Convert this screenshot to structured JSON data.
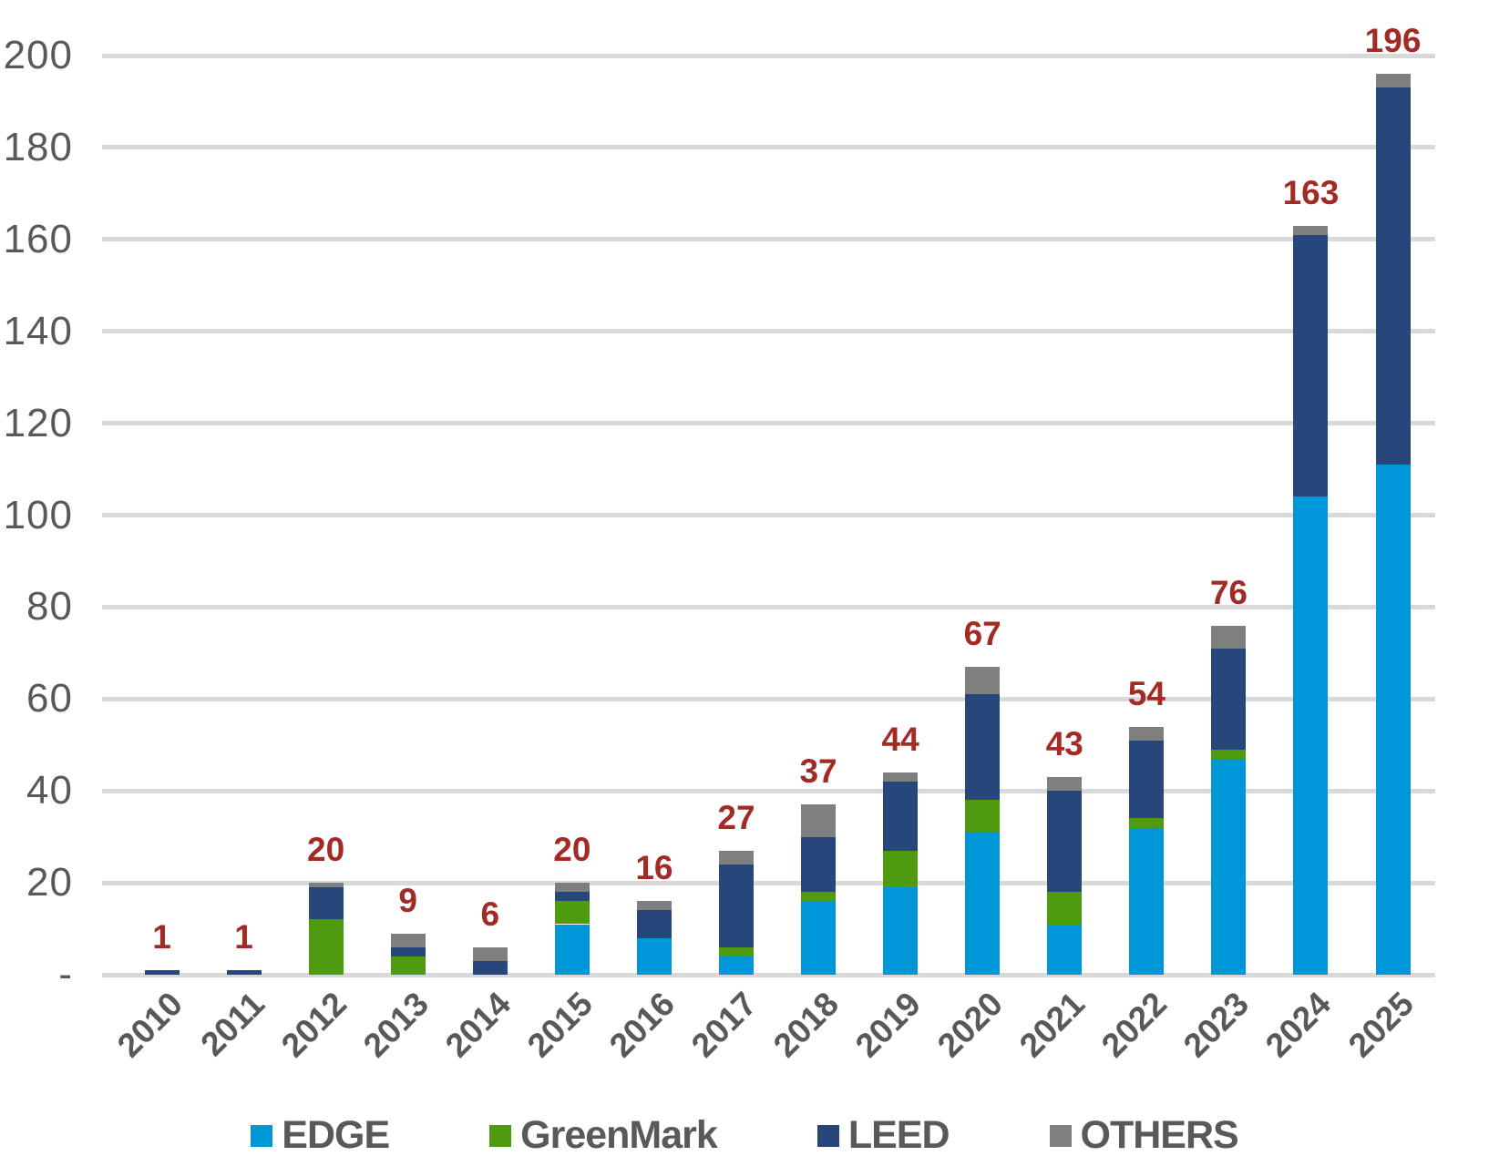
{
  "chart_data": {
    "type": "bar",
    "stacked": true,
    "title": "",
    "xlabel": "",
    "ylabel": "",
    "categories": [
      "2010",
      "2011",
      "2012",
      "2013",
      "2014",
      "2015",
      "2016",
      "2017",
      "2018",
      "2019",
      "2020",
      "2021",
      "2022",
      "2023",
      "2024",
      "2025"
    ],
    "series": [
      {
        "name": "EDGE",
        "color": "#0097d8",
        "values": [
          0,
          0,
          0,
          0,
          0,
          11,
          8,
          4,
          16,
          19,
          31,
          11,
          32,
          47,
          104,
          111
        ]
      },
      {
        "name": "GreenMark",
        "color": "#4e9b10",
        "values": [
          0,
          0,
          12,
          4,
          0,
          5,
          0,
          2,
          2,
          8,
          7,
          7,
          2,
          2,
          0,
          0
        ]
      },
      {
        "name": "LEED",
        "color": "#274679",
        "values": [
          1,
          1,
          7,
          2,
          3,
          2,
          6,
          18,
          12,
          15,
          23,
          22,
          17,
          22,
          57,
          82
        ]
      },
      {
        "name": "OTHERS",
        "color": "#7f7f7f",
        "values": [
          0,
          0,
          1,
          3,
          3,
          2,
          2,
          3,
          7,
          2,
          6,
          3,
          3,
          5,
          2,
          3
        ]
      }
    ],
    "totals": [
      1,
      1,
      20,
      9,
      6,
      20,
      16,
      27,
      37,
      44,
      67,
      43,
      54,
      76,
      163,
      196
    ],
    "y_ticks": [
      {
        "value": 200,
        "label": "200"
      },
      {
        "value": 180,
        "label": "180"
      },
      {
        "value": 160,
        "label": "160"
      },
      {
        "value": 140,
        "label": "140"
      },
      {
        "value": 120,
        "label": "120"
      },
      {
        "value": 100,
        "label": "100"
      },
      {
        "value": 80,
        "label": "80"
      },
      {
        "value": 60,
        "label": "60"
      },
      {
        "value": 40,
        "label": "40"
      },
      {
        "value": 20,
        "label": "20"
      },
      {
        "value": 0,
        "label": "-"
      }
    ],
    "ylim": [
      0,
      200
    ],
    "grid": true,
    "gridline_color": "#d9d9d9",
    "axis_text_color": "#595959",
    "total_label_color": "#a32b26",
    "legend_position": "bottom",
    "legend": [
      "EDGE",
      "GreenMark",
      "LEED",
      "OTHERS"
    ]
  }
}
